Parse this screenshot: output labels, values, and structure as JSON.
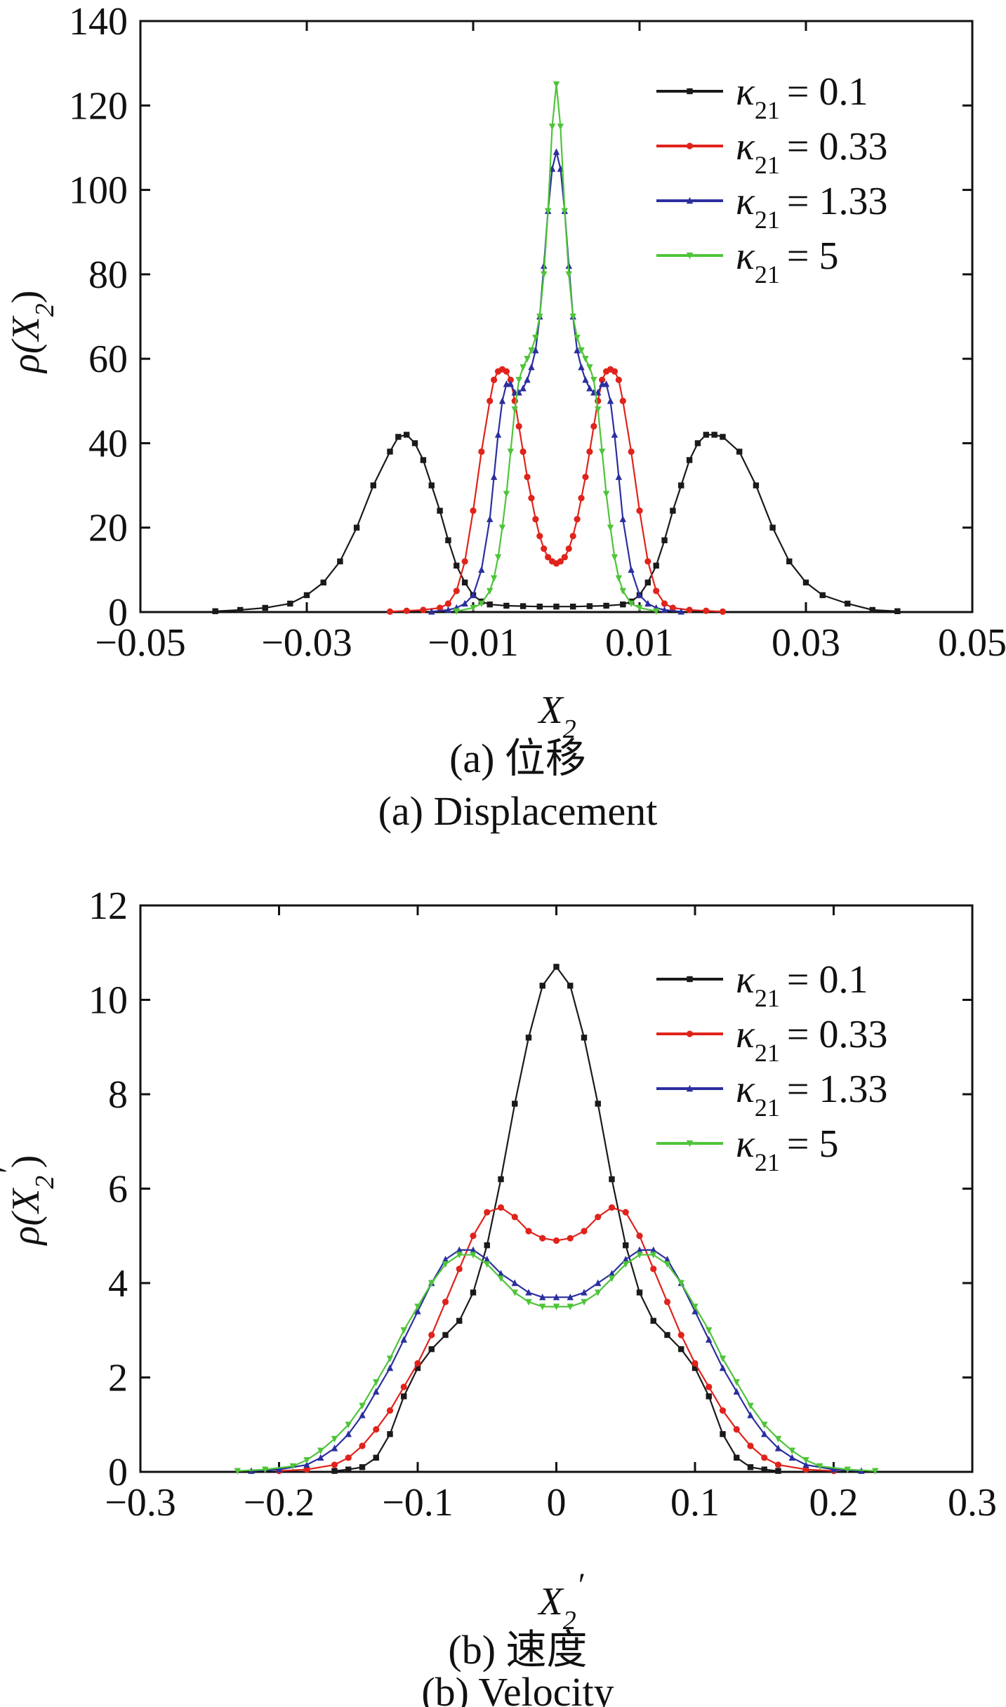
{
  "chart_data": [
    {
      "type": "line",
      "xlabel": "X2",
      "ylabel": "ρ(X2)",
      "caption_cn": "(a)  位移",
      "caption_en": "(a)  Displacement",
      "xlim": [
        -0.05,
        0.05
      ],
      "ylim": [
        0,
        140
      ],
      "x_ticks": [
        "−0.05",
        "−0.03",
        "−0.01",
        "0.01",
        "0.03",
        "0.05"
      ],
      "x_tick_values": [
        -0.05,
        -0.03,
        -0.01,
        0.01,
        0.03,
        0.05
      ],
      "y_ticks": [
        "0",
        "20",
        "40",
        "60",
        "80",
        "100",
        "120",
        "140"
      ],
      "y_tick_values": [
        0,
        20,
        40,
        60,
        80,
        100,
        120,
        140
      ],
      "grid": false,
      "legend_position": "top-right",
      "series": [
        {
          "name": "κ21 = 0.1",
          "color": "#1a1a1a",
          "marker": "square",
          "x": [
            -0.041,
            -0.038,
            -0.035,
            -0.032,
            -0.03,
            -0.028,
            -0.026,
            -0.024,
            -0.022,
            -0.02,
            -0.019,
            -0.018,
            -0.017,
            -0.016,
            -0.015,
            -0.014,
            -0.013,
            -0.012,
            -0.011,
            -0.01,
            -0.009,
            -0.008,
            -0.006,
            -0.004,
            -0.002,
            0,
            0.002,
            0.004,
            0.006,
            0.008,
            0.009,
            0.01,
            0.011,
            0.012,
            0.013,
            0.014,
            0.015,
            0.016,
            0.017,
            0.018,
            0.019,
            0.02,
            0.022,
            0.024,
            0.026,
            0.028,
            0.03,
            0.032,
            0.035,
            0.038,
            0.041
          ],
          "y": [
            0.2,
            0.5,
            1,
            2,
            4,
            7,
            12,
            20,
            30,
            38,
            41.5,
            42,
            40,
            36,
            30,
            24,
            17,
            11,
            7,
            4,
            2.5,
            1.8,
            1.5,
            1.4,
            1.3,
            1.3,
            1.3,
            1.4,
            1.5,
            1.8,
            2.5,
            4,
            7,
            11,
            17,
            24,
            30,
            36,
            40,
            42,
            42,
            41.5,
            38,
            30,
            20,
            12,
            7,
            4,
            2,
            0.5,
            0.2
          ]
        },
        {
          "name": "κ21 = 0.33",
          "color": "#e0231b",
          "marker": "circle",
          "x": [
            -0.02,
            -0.018,
            -0.016,
            -0.014,
            -0.013,
            -0.012,
            -0.011,
            -0.01,
            -0.009,
            -0.008,
            -0.0075,
            -0.007,
            -0.0065,
            -0.006,
            -0.0055,
            -0.005,
            -0.0045,
            -0.004,
            -0.0035,
            -0.003,
            -0.0025,
            -0.002,
            -0.0015,
            -0.001,
            -0.0005,
            0,
            0.0005,
            0.001,
            0.0015,
            0.002,
            0.0025,
            0.003,
            0.0035,
            0.004,
            0.0045,
            0.005,
            0.0055,
            0.006,
            0.0065,
            0.007,
            0.0075,
            0.008,
            0.009,
            0.01,
            0.011,
            0.012,
            0.013,
            0.014,
            0.016,
            0.018,
            0.02
          ],
          "y": [
            0.1,
            0.3,
            0.5,
            1,
            2,
            5,
            12,
            24,
            38,
            50,
            55,
            57,
            57.5,
            57,
            55,
            50,
            44,
            38,
            32,
            27,
            22,
            18,
            15,
            13,
            12,
            11.5,
            12,
            13,
            15,
            18,
            22,
            27,
            32,
            38,
            44,
            50,
            55,
            57,
            57.5,
            57,
            55,
            50,
            38,
            24,
            12,
            5,
            2,
            1,
            0.5,
            0.3,
            0.1
          ]
        },
        {
          "name": "κ21 = 1.33",
          "color": "#2b2f9e",
          "marker": "triangle",
          "x": [
            -0.015,
            -0.013,
            -0.012,
            -0.011,
            -0.01,
            -0.009,
            -0.008,
            -0.0075,
            -0.007,
            -0.0065,
            -0.006,
            -0.0055,
            -0.005,
            -0.0045,
            -0.004,
            -0.0035,
            -0.003,
            -0.0025,
            -0.002,
            -0.0015,
            -0.001,
            -0.0005,
            0,
            0.0005,
            0.001,
            0.0015,
            0.002,
            0.0025,
            0.003,
            0.0035,
            0.004,
            0.0045,
            0.005,
            0.0055,
            0.006,
            0.0065,
            0.007,
            0.0075,
            0.008,
            0.009,
            0.01,
            0.011,
            0.012,
            0.013,
            0.015
          ],
          "y": [
            0.1,
            0.5,
            1,
            2,
            4,
            10,
            22,
            32,
            42,
            50,
            54,
            54,
            52,
            52,
            53,
            55,
            58,
            62,
            70,
            82,
            95,
            105,
            109,
            105,
            95,
            82,
            70,
            62,
            58,
            55,
            53,
            52,
            52,
            54,
            54,
            50,
            42,
            32,
            22,
            10,
            4,
            2,
            1,
            0.5,
            0.1
          ]
        },
        {
          "name": "κ21 = 5",
          "color": "#4fc43a",
          "marker": "triangle-down",
          "x": [
            -0.012,
            -0.01,
            -0.009,
            -0.008,
            -0.0075,
            -0.007,
            -0.0065,
            -0.006,
            -0.0055,
            -0.005,
            -0.0045,
            -0.004,
            -0.0035,
            -0.003,
            -0.0025,
            -0.002,
            -0.0015,
            -0.001,
            -0.0005,
            0,
            0.0005,
            0.001,
            0.0015,
            0.002,
            0.0025,
            0.003,
            0.0035,
            0.004,
            0.0045,
            0.005,
            0.0055,
            0.006,
            0.0065,
            0.007,
            0.0075,
            0.008,
            0.009,
            0.01,
            0.012
          ],
          "y": [
            0.2,
            1,
            2,
            5,
            8,
            13,
            20,
            28,
            38,
            48,
            55,
            58,
            60,
            62,
            65,
            70,
            80,
            95,
            115,
            125,
            115,
            95,
            80,
            70,
            65,
            62,
            60,
            58,
            55,
            48,
            38,
            28,
            20,
            13,
            8,
            5,
            2,
            1,
            0.2
          ]
        }
      ]
    },
    {
      "type": "line",
      "xlabel": "X2′",
      "ylabel": "ρ(X2′)",
      "caption_cn": "(b)  速度",
      "caption_en": "(b)  Velocity",
      "xlim": [
        -0.3,
        0.3
      ],
      "ylim": [
        0,
        12
      ],
      "x_ticks": [
        "−0.3",
        "−0.2",
        "−0.1",
        "0",
        "0.1",
        "0.2",
        "0.3"
      ],
      "x_tick_values": [
        -0.3,
        -0.2,
        -0.1,
        0,
        0.1,
        0.2,
        0.3
      ],
      "y_ticks": [
        "0",
        "2",
        "4",
        "6",
        "8",
        "10",
        "12"
      ],
      "y_tick_values": [
        0,
        2,
        4,
        6,
        8,
        10,
        12
      ],
      "grid": false,
      "legend_position": "top-right",
      "series": [
        {
          "name": "κ21 = 0.1",
          "color": "#1a1a1a",
          "marker": "square",
          "x": [
            -0.16,
            -0.15,
            -0.14,
            -0.13,
            -0.12,
            -0.11,
            -0.1,
            -0.09,
            -0.08,
            -0.07,
            -0.06,
            -0.05,
            -0.04,
            -0.03,
            -0.02,
            -0.01,
            0,
            0.01,
            0.02,
            0.03,
            0.04,
            0.05,
            0.06,
            0.07,
            0.08,
            0.09,
            0.1,
            0.11,
            0.12,
            0.13,
            0.14,
            0.15,
            0.16
          ],
          "y": [
            0.02,
            0.05,
            0.1,
            0.3,
            0.8,
            1.6,
            2.2,
            2.6,
            2.9,
            3.2,
            3.8,
            4.8,
            6.2,
            7.8,
            9.2,
            10.3,
            10.7,
            10.3,
            9.2,
            7.8,
            6.2,
            4.8,
            3.8,
            3.2,
            2.9,
            2.6,
            2.2,
            1.6,
            0.8,
            0.3,
            0.1,
            0.05,
            0.02
          ]
        },
        {
          "name": "κ21 = 0.33",
          "color": "#e0231b",
          "marker": "circle",
          "x": [
            -0.2,
            -0.18,
            -0.16,
            -0.15,
            -0.14,
            -0.13,
            -0.12,
            -0.11,
            -0.1,
            -0.09,
            -0.08,
            -0.07,
            -0.06,
            -0.05,
            -0.04,
            -0.03,
            -0.02,
            -0.01,
            0,
            0.01,
            0.02,
            0.03,
            0.04,
            0.05,
            0.06,
            0.07,
            0.08,
            0.09,
            0.1,
            0.11,
            0.12,
            0.13,
            0.14,
            0.15,
            0.16,
            0.18,
            0.2
          ],
          "y": [
            0.02,
            0.05,
            0.15,
            0.3,
            0.55,
            0.9,
            1.3,
            1.8,
            2.3,
            2.9,
            3.6,
            4.3,
            5,
            5.5,
            5.6,
            5.4,
            5.1,
            4.95,
            4.9,
            4.95,
            5.1,
            5.4,
            5.6,
            5.5,
            5,
            4.3,
            3.6,
            2.9,
            2.3,
            1.8,
            1.3,
            0.9,
            0.55,
            0.3,
            0.15,
            0.05,
            0.02
          ]
        },
        {
          "name": "κ21 = 1.33",
          "color": "#2b2f9e",
          "marker": "triangle",
          "x": [
            -0.22,
            -0.2,
            -0.18,
            -0.17,
            -0.16,
            -0.15,
            -0.14,
            -0.13,
            -0.12,
            -0.11,
            -0.1,
            -0.09,
            -0.08,
            -0.07,
            -0.06,
            -0.05,
            -0.04,
            -0.03,
            -0.02,
            -0.01,
            0,
            0.01,
            0.02,
            0.03,
            0.04,
            0.05,
            0.06,
            0.07,
            0.08,
            0.09,
            0.1,
            0.11,
            0.12,
            0.13,
            0.14,
            0.15,
            0.16,
            0.17,
            0.18,
            0.2,
            0.22
          ],
          "y": [
            0.02,
            0.05,
            0.15,
            0.3,
            0.5,
            0.8,
            1.2,
            1.7,
            2.2,
            2.8,
            3.4,
            4,
            4.5,
            4.7,
            4.7,
            4.5,
            4.2,
            4,
            3.8,
            3.7,
            3.7,
            3.7,
            3.8,
            4,
            4.2,
            4.5,
            4.7,
            4.7,
            4.5,
            4,
            3.4,
            2.8,
            2.2,
            1.7,
            1.2,
            0.8,
            0.5,
            0.3,
            0.15,
            0.05,
            0.02
          ]
        },
        {
          "name": "κ21 = 5",
          "color": "#4fc43a",
          "marker": "triangle-down",
          "x": [
            -0.23,
            -0.21,
            -0.19,
            -0.18,
            -0.17,
            -0.16,
            -0.15,
            -0.14,
            -0.13,
            -0.12,
            -0.11,
            -0.1,
            -0.09,
            -0.08,
            -0.07,
            -0.06,
            -0.05,
            -0.04,
            -0.03,
            -0.02,
            -0.01,
            0,
            0.01,
            0.02,
            0.03,
            0.04,
            0.05,
            0.06,
            0.07,
            0.08,
            0.09,
            0.1,
            0.11,
            0.12,
            0.13,
            0.14,
            0.15,
            0.16,
            0.17,
            0.18,
            0.19,
            0.21,
            0.23
          ],
          "y": [
            0.02,
            0.05,
            0.12,
            0.25,
            0.45,
            0.7,
            1.0,
            1.4,
            1.9,
            2.4,
            3.0,
            3.5,
            4.0,
            4.4,
            4.6,
            4.6,
            4.4,
            4.1,
            3.8,
            3.6,
            3.5,
            3.5,
            3.5,
            3.6,
            3.8,
            4.1,
            4.4,
            4.6,
            4.6,
            4.4,
            4.0,
            3.5,
            3.0,
            2.4,
            1.9,
            1.4,
            1.0,
            0.7,
            0.45,
            0.25,
            0.12,
            0.05,
            0.02
          ]
        }
      ]
    }
  ]
}
